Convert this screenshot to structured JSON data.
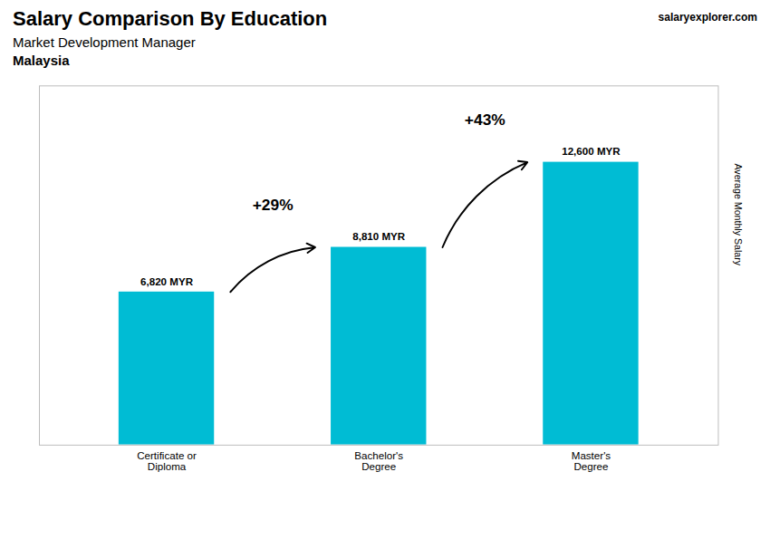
{
  "chart_data": {
    "type": "bar",
    "title": "Salary Comparison By Education",
    "subtitle": "Market Development Manager",
    "country": "Malaysia",
    "source": [
      "salary",
      "explorer",
      ".com"
    ],
    "categories": [
      "Certificate or\nDiploma",
      "Bachelor's\nDegree",
      "Master's\nDegree"
    ],
    "values": [
      6820,
      8810,
      12600
    ],
    "value_labels": [
      "6,820 MYR",
      "8,810 MYR",
      "12,600 MYR"
    ],
    "data_labels": true,
    "annotations": [
      "+29%",
      "+43%"
    ],
    "ylabel": "Average Monthly Salary",
    "color": "#00bcd4",
    "ylim": [
      0,
      16000
    ],
    "tick_labels": "x",
    "grid": false
  }
}
